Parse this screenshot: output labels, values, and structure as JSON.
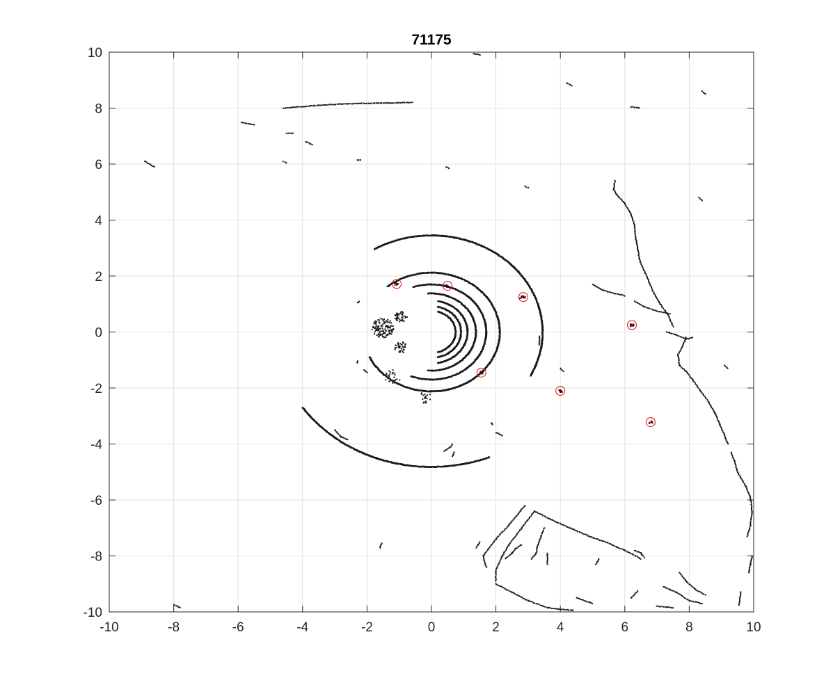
{
  "chart_data": {
    "type": "scatter",
    "title": "71175",
    "xlabel": "",
    "ylabel": "",
    "xlim": [
      -10,
      10
    ],
    "ylim": [
      -10,
      10
    ],
    "xticks": [
      -10,
      -8,
      -6,
      -4,
      -2,
      0,
      2,
      4,
      6,
      8,
      10
    ],
    "yticks": [
      -10,
      -8,
      -6,
      -4,
      -2,
      0,
      2,
      4,
      6,
      8,
      10
    ],
    "grid": true,
    "colors": {
      "points": "#1a1a1a",
      "markers": "#ff0000",
      "grid": "#e0e0e0",
      "axes": "#262626"
    },
    "arcs": [
      {
        "r": 0.75,
        "start": -75,
        "end": 75
      },
      {
        "r": 0.92,
        "start": -78,
        "end": 78
      },
      {
        "r": 1.12,
        "start": -80,
        "end": 80
      },
      {
        "r": 1.38,
        "start": -95,
        "end": 95
      },
      {
        "r": 1.7,
        "start": -112,
        "end": 110
      },
      {
        "r": 2.12,
        "start": -155,
        "end": 130
      },
      {
        "r": 3.45,
        "start": -27,
        "end": 50
      },
      {
        "r": 3.45,
        "start": 50,
        "end": 121
      },
      {
        "r": 4.82,
        "start": 214,
        "end": 292
      }
    ],
    "segments": [
      [
        [
          -8.9,
          6.1
        ],
        [
          -8.6,
          5.9
        ]
      ],
      [
        [
          -4.6,
          8.0
        ],
        [
          -3.5,
          8.1
        ],
        [
          -2.8,
          8.15
        ],
        [
          -0.6,
          8.2
        ]
      ],
      [
        [
          -5.9,
          7.5
        ],
        [
          -5.5,
          7.4
        ]
      ],
      [
        [
          -4.5,
          7.1
        ],
        [
          -4.3,
          7.1
        ]
      ],
      [
        [
          -3.9,
          6.8
        ],
        [
          -3.7,
          6.7
        ]
      ],
      [
        [
          -4.6,
          6.1
        ],
        [
          -4.5,
          6.05
        ]
      ],
      [
        [
          -2.3,
          6.15
        ],
        [
          -2.2,
          6.15
        ]
      ],
      [
        [
          1.3,
          9.95
        ],
        [
          1.5,
          9.9
        ]
      ],
      [
        [
          4.2,
          8.9
        ],
        [
          4.35,
          8.8
        ]
      ],
      [
        [
          8.4,
          8.6
        ],
        [
          8.5,
          8.5
        ]
      ],
      [
        [
          6.2,
          8.05
        ],
        [
          6.45,
          8.0
        ]
      ],
      [
        [
          0.45,
          5.9
        ],
        [
          0.55,
          5.85
        ]
      ],
      [
        [
          2.9,
          5.2
        ],
        [
          3.0,
          5.15
        ]
      ],
      [
        [
          8.3,
          4.8
        ],
        [
          8.4,
          4.7
        ]
      ],
      [
        [
          5.7,
          5.4
        ],
        [
          5.65,
          5.1
        ],
        [
          5.75,
          4.9
        ],
        [
          6.0,
          4.6
        ],
        [
          6.2,
          4.2
        ],
        [
          6.3,
          3.8
        ],
        [
          6.35,
          3.3
        ],
        [
          6.4,
          3.0
        ],
        [
          6.45,
          2.6
        ],
        [
          6.6,
          2.2
        ],
        [
          6.75,
          1.8
        ],
        [
          6.9,
          1.4
        ],
        [
          7.1,
          1.0
        ],
        [
          7.35,
          0.6
        ],
        [
          7.5,
          0.2
        ]
      ],
      [
        [
          7.3,
          0.0
        ],
        [
          7.6,
          -0.1
        ],
        [
          7.9,
          -0.25
        ],
        [
          8.1,
          -0.2
        ]
      ],
      [
        [
          7.9,
          -0.2
        ],
        [
          7.8,
          -0.5
        ],
        [
          7.65,
          -0.8
        ],
        [
          7.7,
          -1.2
        ],
        [
          7.9,
          -1.4
        ],
        [
          8.1,
          -1.7
        ],
        [
          8.35,
          -2.1
        ],
        [
          8.6,
          -2.5
        ],
        [
          8.8,
          -2.9
        ],
        [
          8.95,
          -3.3
        ],
        [
          9.1,
          -3.7
        ],
        [
          9.2,
          -4.0
        ]
      ],
      [
        [
          9.3,
          -4.3
        ],
        [
          9.4,
          -4.6
        ],
        [
          9.5,
          -5.0
        ],
        [
          9.6,
          -5.2
        ],
        [
          9.75,
          -5.5
        ],
        [
          9.9,
          -5.9
        ],
        [
          9.95,
          -6.4
        ],
        [
          9.9,
          -6.9
        ],
        [
          9.8,
          -7.3
        ]
      ],
      [
        [
          9.95,
          -8.0
        ],
        [
          9.9,
          -8.3
        ],
        [
          9.85,
          -8.6
        ]
      ],
      [
        [
          9.1,
          -1.2
        ],
        [
          9.2,
          -1.3
        ]
      ],
      [
        [
          4.0,
          -1.3
        ],
        [
          4.1,
          -1.4
        ]
      ],
      [
        [
          5.0,
          1.7
        ],
        [
          5.3,
          1.5
        ],
        [
          5.6,
          1.4
        ],
        [
          6.0,
          1.3
        ]
      ],
      [
        [
          6.3,
          1.1
        ],
        [
          6.6,
          0.9
        ],
        [
          7.0,
          0.75
        ],
        [
          7.4,
          0.65
        ]
      ],
      [
        [
          3.35,
          -0.15
        ],
        [
          3.35,
          -0.45
        ]
      ],
      [
        [
          -3.0,
          -3.5
        ],
        [
          -2.8,
          -3.75
        ],
        [
          -2.6,
          -3.85
        ]
      ],
      [
        [
          0.4,
          -4.25
        ],
        [
          0.6,
          -4.1
        ],
        [
          0.65,
          -4.0
        ]
      ],
      [
        [
          0.65,
          -4.45
        ],
        [
          0.7,
          -4.3
        ]
      ],
      [
        [
          2.9,
          -6.2
        ],
        [
          2.4,
          -6.9
        ],
        [
          2.0,
          -7.4
        ],
        [
          1.6,
          -8.0
        ],
        [
          1.7,
          -8.4
        ]
      ],
      [
        [
          3.2,
          -6.4
        ],
        [
          3.7,
          -6.7
        ],
        [
          4.3,
          -7.0
        ],
        [
          4.9,
          -7.3
        ],
        [
          5.4,
          -7.5
        ],
        [
          6.0,
          -7.8
        ],
        [
          6.5,
          -8.1
        ]
      ],
      [
        [
          3.2,
          -6.4
        ],
        [
          2.8,
          -7.0
        ],
        [
          2.4,
          -7.6
        ],
        [
          2.2,
          -8.0
        ],
        [
          2.0,
          -8.5
        ],
        [
          2.0,
          -8.9
        ]
      ],
      [
        [
          2.0,
          -9.0
        ],
        [
          2.5,
          -9.3
        ],
        [
          3.0,
          -9.6
        ],
        [
          3.6,
          -9.85
        ],
        [
          4.4,
          -9.95
        ]
      ],
      [
        [
          2.3,
          -8.1
        ],
        [
          2.5,
          -7.9
        ],
        [
          2.6,
          -7.75
        ],
        [
          2.8,
          -7.6
        ]
      ],
      [
        [
          3.1,
          -8.1
        ],
        [
          3.25,
          -7.9
        ],
        [
          3.3,
          -7.6
        ],
        [
          3.4,
          -7.3
        ],
        [
          3.5,
          -7.0
        ]
      ],
      [
        [
          3.6,
          -8.3
        ],
        [
          3.6,
          -7.9
        ]
      ],
      [
        [
          5.1,
          -8.3
        ],
        [
          5.2,
          -8.1
        ]
      ],
      [
        [
          6.3,
          -7.8
        ],
        [
          6.5,
          -7.9
        ],
        [
          6.6,
          -8.05
        ]
      ],
      [
        [
          7.2,
          -9.1
        ],
        [
          7.6,
          -9.3
        ],
        [
          8.0,
          -9.6
        ],
        [
          8.4,
          -9.7
        ]
      ],
      [
        [
          8.5,
          -9.4
        ],
        [
          8.2,
          -9.2
        ],
        [
          7.9,
          -8.9
        ],
        [
          7.7,
          -8.6
        ]
      ],
      [
        [
          7.0,
          -9.8
        ],
        [
          7.5,
          -9.85
        ]
      ],
      [
        [
          9.6,
          -9.3
        ],
        [
          9.55,
          -9.75
        ]
      ],
      [
        [
          -8.0,
          -9.75
        ],
        [
          -7.8,
          -9.85
        ]
      ],
      [
        [
          -1.55,
          -7.55
        ],
        [
          -1.6,
          -7.7
        ]
      ],
      [
        [
          4.5,
          -9.5
        ],
        [
          5.0,
          -9.7
        ]
      ],
      [
        [
          6.2,
          -9.5
        ],
        [
          6.4,
          -9.25
        ]
      ],
      [
        [
          1.4,
          -7.7
        ],
        [
          1.5,
          -7.5
        ]
      ],
      [
        [
          1.85,
          -3.25
        ],
        [
          1.9,
          -3.3
        ]
      ],
      [
        [
          2.0,
          -3.6
        ],
        [
          2.2,
          -3.7
        ]
      ],
      [
        [
          -2.1,
          -1.35
        ],
        [
          -2.0,
          -1.45
        ]
      ],
      [
        [
          -2.3,
          -1.05
        ],
        [
          -2.3,
          -1.1
        ]
      ],
      [
        [
          -2.3,
          1.05
        ],
        [
          -2.25,
          1.1
        ]
      ],
      [
        [
          2.75,
          1.2
        ],
        [
          2.8,
          1.25
        ]
      ]
    ],
    "clusters": [
      {
        "x": -1.5,
        "y": 0.15,
        "r": 0.35,
        "n": 120
      },
      {
        "x": -0.95,
        "y": 0.55,
        "r": 0.2,
        "n": 40
      },
      {
        "x": -0.95,
        "y": -0.55,
        "r": 0.2,
        "n": 40
      },
      {
        "x": -1.2,
        "y": -1.6,
        "r": 0.25,
        "n": 25
      },
      {
        "x": -0.2,
        "y": -2.35,
        "r": 0.2,
        "n": 20
      }
    ],
    "objects": [
      {
        "x": -1.08,
        "y": 1.72
      },
      {
        "x": 0.5,
        "y": 1.65
      },
      {
        "x": 2.85,
        "y": 1.25
      },
      {
        "x": 6.22,
        "y": 0.25
      },
      {
        "x": 1.55,
        "y": -1.45
      },
      {
        "x": 4.0,
        "y": -2.1
      },
      {
        "x": 6.8,
        "y": -3.22
      }
    ]
  }
}
